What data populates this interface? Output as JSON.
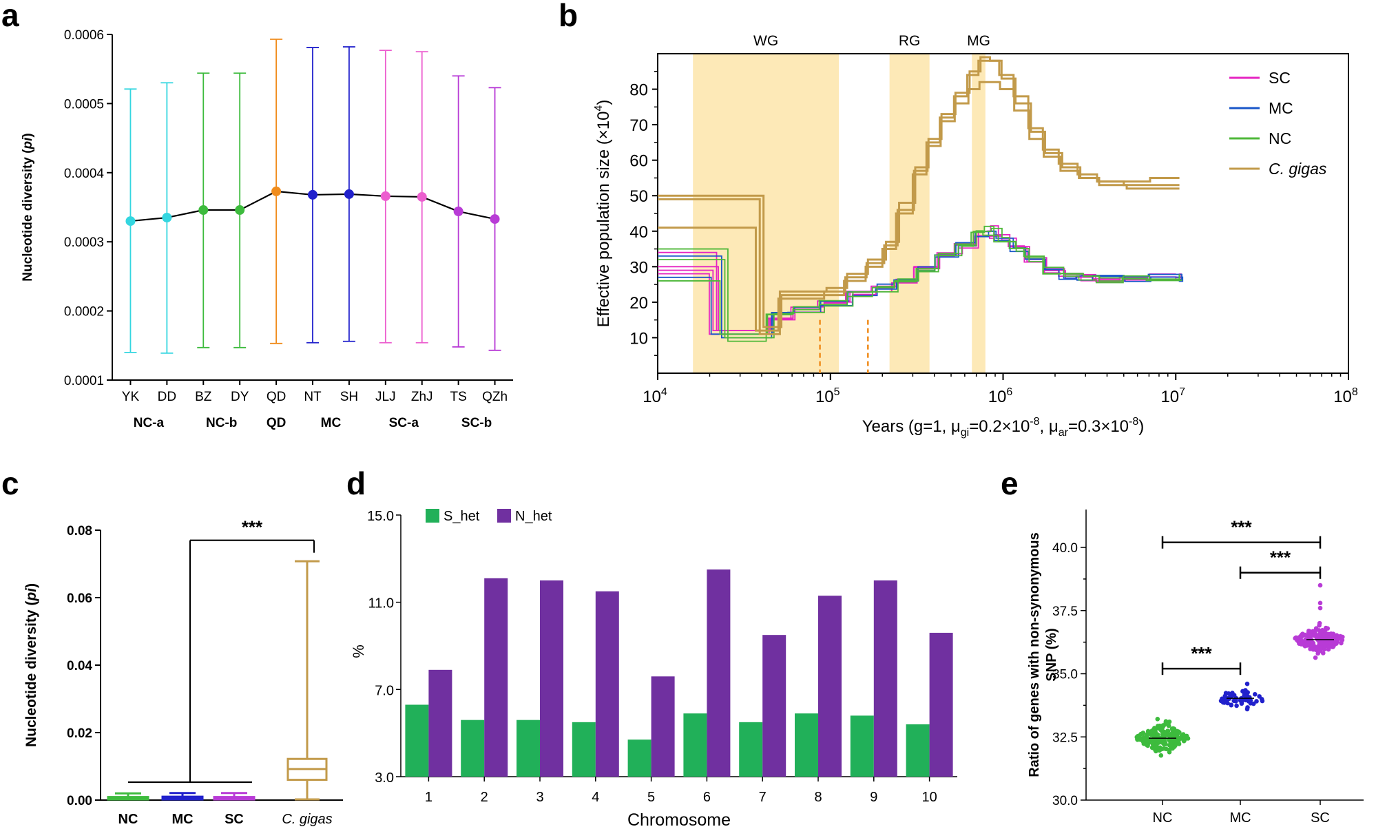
{
  "panel_letters": {
    "a": "a",
    "b": "b",
    "c": "c",
    "d": "d",
    "e": "e"
  },
  "colors": {
    "cyan": "#34d6e0",
    "green": "#3dbb3d",
    "orange": "#f08c1c",
    "blue": "#2121cc",
    "pink": "#ec5fcf",
    "purple": "#b83bd6",
    "gold": "#c29a4a",
    "shade": "#fde9b7",
    "s_het": "#21b059",
    "n_het": "#7030a0",
    "sc": "#e524c2",
    "mc": "#1a57c9",
    "nc": "#4fb83a"
  },
  "chart_data": [
    {
      "id": "a",
      "type": "line",
      "ylabel": "Nucleotide diversity (pi)",
      "ylabel_parts": {
        "main": "Nucleotide diversity (",
        "italic": "pi",
        "end": ")"
      },
      "ylim": [
        0.0001,
        0.0006
      ],
      "yticks": [
        "0.0001",
        "0.0002",
        "0.0003",
        "0.0004",
        "0.0005",
        "0.0006"
      ],
      "categories": [
        "YK",
        "DD",
        "BZ",
        "DY",
        "QD",
        "NT",
        "SH",
        "JLJ",
        "ZhJ",
        "TS",
        "QZh"
      ],
      "values": [
        0.00033,
        0.000335,
        0.000346,
        0.000346,
        0.000373,
        0.000368,
        0.000369,
        0.000366,
        0.000365,
        0.000344,
        0.000333
      ],
      "err_low": [
        0.00014,
        0.000139,
        0.000147,
        0.000147,
        0.000153,
        0.000154,
        0.000156,
        0.000154,
        0.000154,
        0.000148,
        0.000143
      ],
      "err_high": [
        0.000521,
        0.00053,
        0.000544,
        0.000544,
        0.000593,
        0.000581,
        0.000582,
        0.000577,
        0.000575,
        0.00054,
        0.000523
      ],
      "point_colors": [
        "cyan",
        "cyan",
        "green",
        "green",
        "orange",
        "blue",
        "blue",
        "pink",
        "pink",
        "purple",
        "purple"
      ],
      "groups": [
        {
          "label": "NC-a",
          "from": 0,
          "to": 1
        },
        {
          "label": "NC-b",
          "from": 2,
          "to": 3
        },
        {
          "label": "QD",
          "from": 4,
          "to": 4
        },
        {
          "label": "MC",
          "from": 5,
          "to": 6
        },
        {
          "label": "SC-a",
          "from": 7,
          "to": 8
        },
        {
          "label": "SC-b",
          "from": 9,
          "to": 10
        }
      ]
    },
    {
      "id": "b",
      "type": "line",
      "xlabel": "Years (g=1, μgi=0.2×10-8, μar=0.3×10-8)",
      "xlabel_parts": {
        "a": "Years (g=1, μ",
        "b": "gi",
        "c": "=0.2×10",
        "d": "-8",
        "e": ", μ",
        "f": "ar",
        "g": "=0.3×10",
        "h": "-8",
        "i": ")"
      },
      "ylabel": "Effective population size (×104)",
      "ylabel_parts": {
        "main": "Effective population size (×10",
        "sup": "4",
        "end": ")"
      },
      "xscale": "log",
      "xlim": [
        10000,
        100000000
      ],
      "ylim": [
        0,
        90
      ],
      "yticks": [
        "10",
        "20",
        "30",
        "40",
        "50",
        "60",
        "70",
        "80"
      ],
      "ytick_values": [
        10,
        20,
        30,
        40,
        50,
        60,
        70,
        80
      ],
      "xtick_exps": [
        "4",
        "5",
        "6",
        "7",
        "8"
      ],
      "xtick_base": "10",
      "regions": [
        {
          "label": "WG",
          "from": 16000,
          "to": 112000
        },
        {
          "label": "RG",
          "from": 220000,
          "to": 375000
        },
        {
          "label": "MG",
          "from": 660000,
          "to": 790000
        }
      ],
      "dashed_years": [
        87000,
        165000
      ],
      "legend": [
        {
          "label": "SC",
          "color": "sc",
          "italic": false
        },
        {
          "label": "MC",
          "color": "mc",
          "italic": false
        },
        {
          "label": "NC",
          "color": "nc",
          "italic": false
        },
        {
          "label": "C. gigas",
          "color": "gold",
          "italic": true
        }
      ],
      "gigas_curves": [
        [
          [
            9500,
            50
          ],
          [
            40000,
            50
          ],
          [
            41000,
            13
          ],
          [
            47000,
            13
          ],
          [
            52000,
            22
          ],
          [
            90000,
            22
          ],
          [
            120000,
            26
          ],
          [
            160000,
            30
          ],
          [
            200000,
            35
          ],
          [
            240000,
            45
          ],
          [
            300000,
            56
          ],
          [
            360000,
            65
          ],
          [
            430000,
            72
          ],
          [
            520000,
            78
          ],
          [
            620000,
            84
          ],
          [
            720000,
            88
          ],
          [
            820000,
            88
          ],
          [
            950000,
            84
          ],
          [
            1150000,
            78
          ],
          [
            1400000,
            69
          ],
          [
            1700000,
            63
          ],
          [
            2100000,
            59
          ],
          [
            2700000,
            56
          ],
          [
            3500000,
            54
          ],
          [
            5000000,
            53
          ],
          [
            7000000,
            53
          ],
          [
            10500000,
            53
          ]
        ],
        [
          [
            9500,
            49
          ],
          [
            38000,
            49
          ],
          [
            39000,
            11
          ],
          [
            46000,
            11
          ],
          [
            51000,
            23
          ],
          [
            95000,
            24
          ],
          [
            125000,
            28
          ],
          [
            165000,
            32
          ],
          [
            210000,
            37
          ],
          [
            250000,
            48
          ],
          [
            310000,
            58
          ],
          [
            370000,
            66
          ],
          [
            440000,
            73
          ],
          [
            530000,
            79
          ],
          [
            640000,
            85
          ],
          [
            740000,
            89
          ],
          [
            840000,
            88
          ],
          [
            980000,
            83
          ],
          [
            1180000,
            76
          ],
          [
            1450000,
            68
          ],
          [
            1750000,
            62
          ],
          [
            2200000,
            58
          ],
          [
            2800000,
            55
          ],
          [
            3600000,
            53
          ],
          [
            5200000,
            52
          ],
          [
            7200000,
            52
          ],
          [
            10500000,
            52
          ]
        ],
        [
          [
            9500,
            41
          ],
          [
            36000,
            41
          ],
          [
            37000,
            12
          ],
          [
            45000,
            12
          ],
          [
            50000,
            21
          ],
          [
            92000,
            23
          ],
          [
            122000,
            27
          ],
          [
            162000,
            31
          ],
          [
            205000,
            36
          ],
          [
            245000,
            46
          ],
          [
            305000,
            57
          ],
          [
            365000,
            64
          ],
          [
            435000,
            71
          ],
          [
            525000,
            76
          ],
          [
            630000,
            80
          ],
          [
            730000,
            82
          ],
          [
            830000,
            82
          ],
          [
            960000,
            80
          ],
          [
            1160000,
            74
          ],
          [
            1420000,
            66
          ],
          [
            1720000,
            61
          ],
          [
            2150000,
            57
          ],
          [
            2750000,
            55
          ],
          [
            3550000,
            54
          ],
          [
            5100000,
            54
          ],
          [
            7100000,
            55
          ],
          [
            10500000,
            55
          ]
        ]
      ],
      "small_curves": [
        {
          "color": "sc",
          "start": 30,
          "drop": 22000,
          "low": 12,
          "y40": 39.5
        },
        {
          "color": "sc",
          "start": 29,
          "drop": 20500,
          "low": 12,
          "y40": 41
        },
        {
          "color": "sc",
          "start": 28,
          "drop": 19500,
          "low": 11,
          "y40": 40
        },
        {
          "color": "sc",
          "start": 34,
          "drop": 21500,
          "low": 12,
          "y40": 39
        },
        {
          "color": "mc",
          "start": 33,
          "drop": 23000,
          "low": 10,
          "y40": 40
        },
        {
          "color": "mc",
          "start": 27,
          "drop": 20000,
          "low": 11,
          "y40": 39
        },
        {
          "color": "nc",
          "start": 32,
          "drop": 24000,
          "low": 10,
          "y40": 39
        },
        {
          "color": "nc",
          "start": 35,
          "drop": 25000,
          "low": 9,
          "y40": 40
        },
        {
          "color": "nc",
          "start": 26,
          "drop": 22500,
          "low": 11,
          "y40": 41
        }
      ]
    },
    {
      "id": "c",
      "type": "boxplot",
      "ylabel": "Nucleotide diversity (pi)",
      "ylabel_parts": {
        "main": "Nucleotide diversity (",
        "italic": "pi",
        "end": ")"
      },
      "ylim": [
        0,
        0.08
      ],
      "yticks": [
        "0.00",
        "0.02",
        "0.04",
        "0.06",
        "0.08"
      ],
      "categories": [
        "NC",
        "MC",
        "SC",
        "C. gigas"
      ],
      "category_italic": [
        false,
        false,
        false,
        true
      ],
      "box_colors": [
        "green",
        "blue",
        "purple",
        "gold"
      ],
      "whisker_low": [
        0.0,
        0.0,
        0.0,
        0.0
      ],
      "q1": [
        0.0002,
        0.0002,
        0.0002,
        0.006
      ],
      "median": [
        0.0006,
        0.0007,
        0.0006,
        0.0092
      ],
      "q3": [
        0.0009,
        0.001,
        0.0009,
        0.0122
      ],
      "whisker_high": [
        0.002,
        0.0021,
        0.0021,
        0.0708
      ],
      "significance": "***",
      "bracket_y": 0.0053,
      "bracket_top": 0.077
    },
    {
      "id": "d",
      "type": "bar",
      "xlabel": "Chromosome",
      "ylabel": "%",
      "ylim": [
        3.0,
        15.0
      ],
      "yticks": [
        "3.0",
        "7.0",
        "11.0",
        "15.0"
      ],
      "categories": [
        "1",
        "2",
        "3",
        "4",
        "5",
        "6",
        "7",
        "8",
        "9",
        "10"
      ],
      "series": [
        {
          "name": "S_het",
          "color": "s_het",
          "values": [
            6.3,
            5.6,
            5.6,
            5.5,
            4.7,
            5.9,
            5.5,
            5.9,
            5.8,
            5.4
          ]
        },
        {
          "name": "N_het",
          "color": "n_het",
          "values": [
            7.9,
            12.1,
            12.0,
            11.5,
            7.6,
            12.5,
            9.5,
            11.3,
            12.0,
            9.6
          ]
        }
      ]
    },
    {
      "id": "e",
      "type": "scatter",
      "ylabel_line1": "Ratio of genes with non-synonymous",
      "ylabel_line2": "SNP (%)",
      "ylim": [
        30.0,
        41.5
      ],
      "yticks": [
        "30.0",
        "32.5",
        "35.0",
        "37.5",
        "40.0"
      ],
      "categories": [
        "NC",
        "MC",
        "SC"
      ],
      "colors": [
        "green",
        "blue",
        "purple"
      ],
      "means": [
        32.45,
        34.03,
        36.35
      ],
      "spread": [
        0.24,
        0.17,
        0.22
      ],
      "counts": [
        170,
        60,
        170
      ],
      "extra_points": [
        [
          2,
          38.5
        ],
        [
          2,
          37.8
        ],
        [
          2,
          37.6
        ],
        [
          0,
          33.1
        ],
        [
          0,
          31.9
        ],
        [
          1,
          34.6
        ],
        [
          1,
          33.6
        ]
      ],
      "significance": [
        {
          "from": 0,
          "to": 1,
          "y": 35.2,
          "label": "***"
        },
        {
          "from": 1,
          "to": 2,
          "y": 39.0,
          "label": "***"
        },
        {
          "from": 0,
          "to": 2,
          "y": 40.2,
          "label": "***"
        }
      ]
    }
  ]
}
